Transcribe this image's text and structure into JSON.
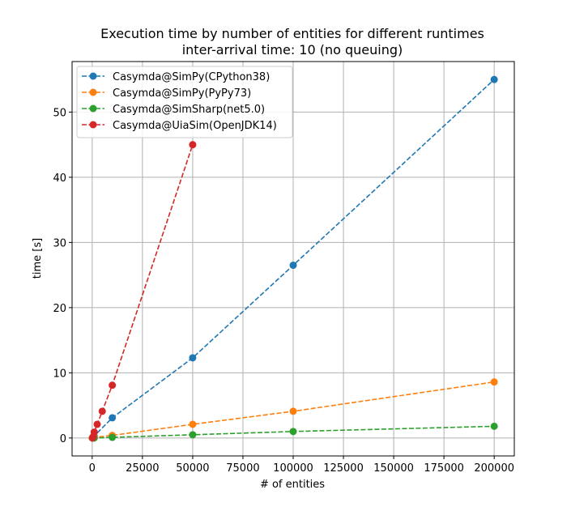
{
  "chart_data": {
    "type": "line",
    "title": "Execution time by number of entities for different runtimes",
    "subtitle": "inter-arrival time: 10 (no queuing)",
    "xlabel": "# of entities",
    "ylabel": "time [s]",
    "xlim": [
      -10000,
      210000
    ],
    "ylim": [
      -2.75,
      57.75
    ],
    "xticks": [
      0,
      25000,
      50000,
      75000,
      100000,
      125000,
      150000,
      175000,
      200000
    ],
    "yticks": [
      0,
      10,
      20,
      30,
      40,
      50
    ],
    "grid": true,
    "legend_position": "top-left",
    "series": [
      {
        "name": "Casymda@SimPy(CPython38)",
        "color": "#1f77b4",
        "x": [
          100,
          1000,
          10000,
          50000,
          100000,
          200000
        ],
        "y": [
          0.03,
          0.3,
          3.1,
          12.3,
          26.5,
          55.0
        ]
      },
      {
        "name": "Casymda@SimPy(PyPy73)",
        "color": "#ff7f0e",
        "x": [
          100,
          1000,
          10000,
          50000,
          100000,
          200000
        ],
        "y": [
          0.0,
          0.1,
          0.4,
          2.1,
          4.1,
          8.6
        ]
      },
      {
        "name": "Casymda@SimSharp(net5.0)",
        "color": "#2ca02c",
        "x": [
          100,
          1000,
          10000,
          50000,
          100000,
          200000
        ],
        "y": [
          0.0,
          0.0,
          0.1,
          0.5,
          1.0,
          1.8
        ]
      },
      {
        "name": "Casymda@UiaSim(OpenJDK14)",
        "color": "#d62728",
        "x": [
          100,
          500,
          1000,
          2500,
          5000,
          10000,
          50000
        ],
        "y": [
          0.0,
          0.2,
          0.9,
          2.1,
          4.1,
          8.1,
          45.0
        ]
      }
    ]
  }
}
